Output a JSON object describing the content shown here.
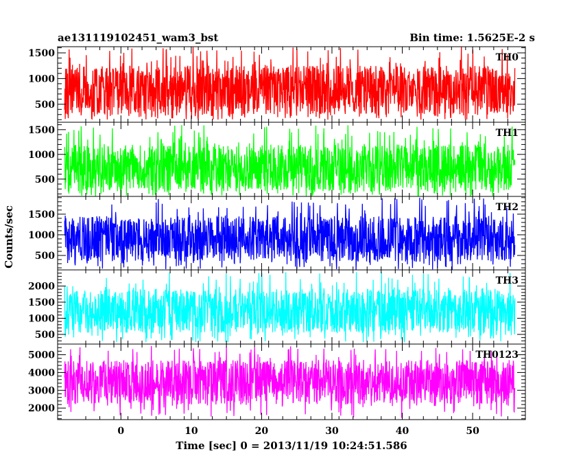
{
  "header": {
    "left_title": "ae131119102451_wam3_bst",
    "right_title": "Bin time: 1.5625E-2 s"
  },
  "chart_data": {
    "type": "line",
    "title": "ae131119102451_wam3_bst",
    "subtitle": "Bin time: 1.5625E-2 s",
    "xlabel": "Time [sec] 0 = 2013/11/19 10:24:51.586",
    "ylabel": "Counts/sec",
    "xlim": [
      -9,
      57.5
    ],
    "x_data_range": [
      -8,
      56
    ],
    "x_ticks": [
      0,
      10,
      20,
      30,
      40,
      50
    ],
    "x_tick_labels": [
      "0",
      "10",
      "20",
      "30",
      "40",
      "50"
    ],
    "bin_time_s": 0.015625,
    "grid": false,
    "legend": "none",
    "panels": [
      {
        "name": "TH0",
        "color": "#ff0000",
        "ylim": [
          150,
          1620
        ],
        "y_ticks": [
          500,
          1000,
          1500
        ],
        "y_tick_labels": [
          "500",
          "1000",
          "1500"
        ],
        "typical_low": 300,
        "typical_high": 1250,
        "min": 200,
        "max": 1620
      },
      {
        "name": "TH1",
        "color": "#00ff00",
        "ylim": [
          150,
          1650
        ],
        "y_ticks": [
          500,
          1000,
          1500
        ],
        "y_tick_labels": [
          "500",
          "1000",
          "1500"
        ],
        "typical_low": 250,
        "typical_high": 1200,
        "min": 150,
        "max": 1600
      },
      {
        "name": "TH2",
        "color": "#0000ff",
        "ylim": [
          150,
          1930
        ],
        "y_ticks": [
          500,
          1000,
          1500
        ],
        "y_tick_labels": [
          "500",
          "1000",
          "1500"
        ],
        "typical_low": 350,
        "typical_high": 1450,
        "min": 150,
        "max": 1900
      },
      {
        "name": "TH3",
        "color": "#00ffff",
        "ylim": [
          200,
          2500
        ],
        "y_ticks": [
          500,
          1000,
          1500,
          2000
        ],
        "y_tick_labels": [
          "500",
          "1000",
          "1500",
          "2000"
        ],
        "typical_low": 550,
        "typical_high": 1900,
        "min": 250,
        "max": 2450
      },
      {
        "name": "TH0123",
        "color": "#ff00ff",
        "ylim": [
          1350,
          5600
        ],
        "y_ticks": [
          2000,
          3000,
          4000,
          5000
        ],
        "y_tick_labels": [
          "2000",
          "3000",
          "4000",
          "5000"
        ],
        "typical_low": 2200,
        "typical_high": 4700,
        "min": 1400,
        "max": 5500
      }
    ]
  }
}
